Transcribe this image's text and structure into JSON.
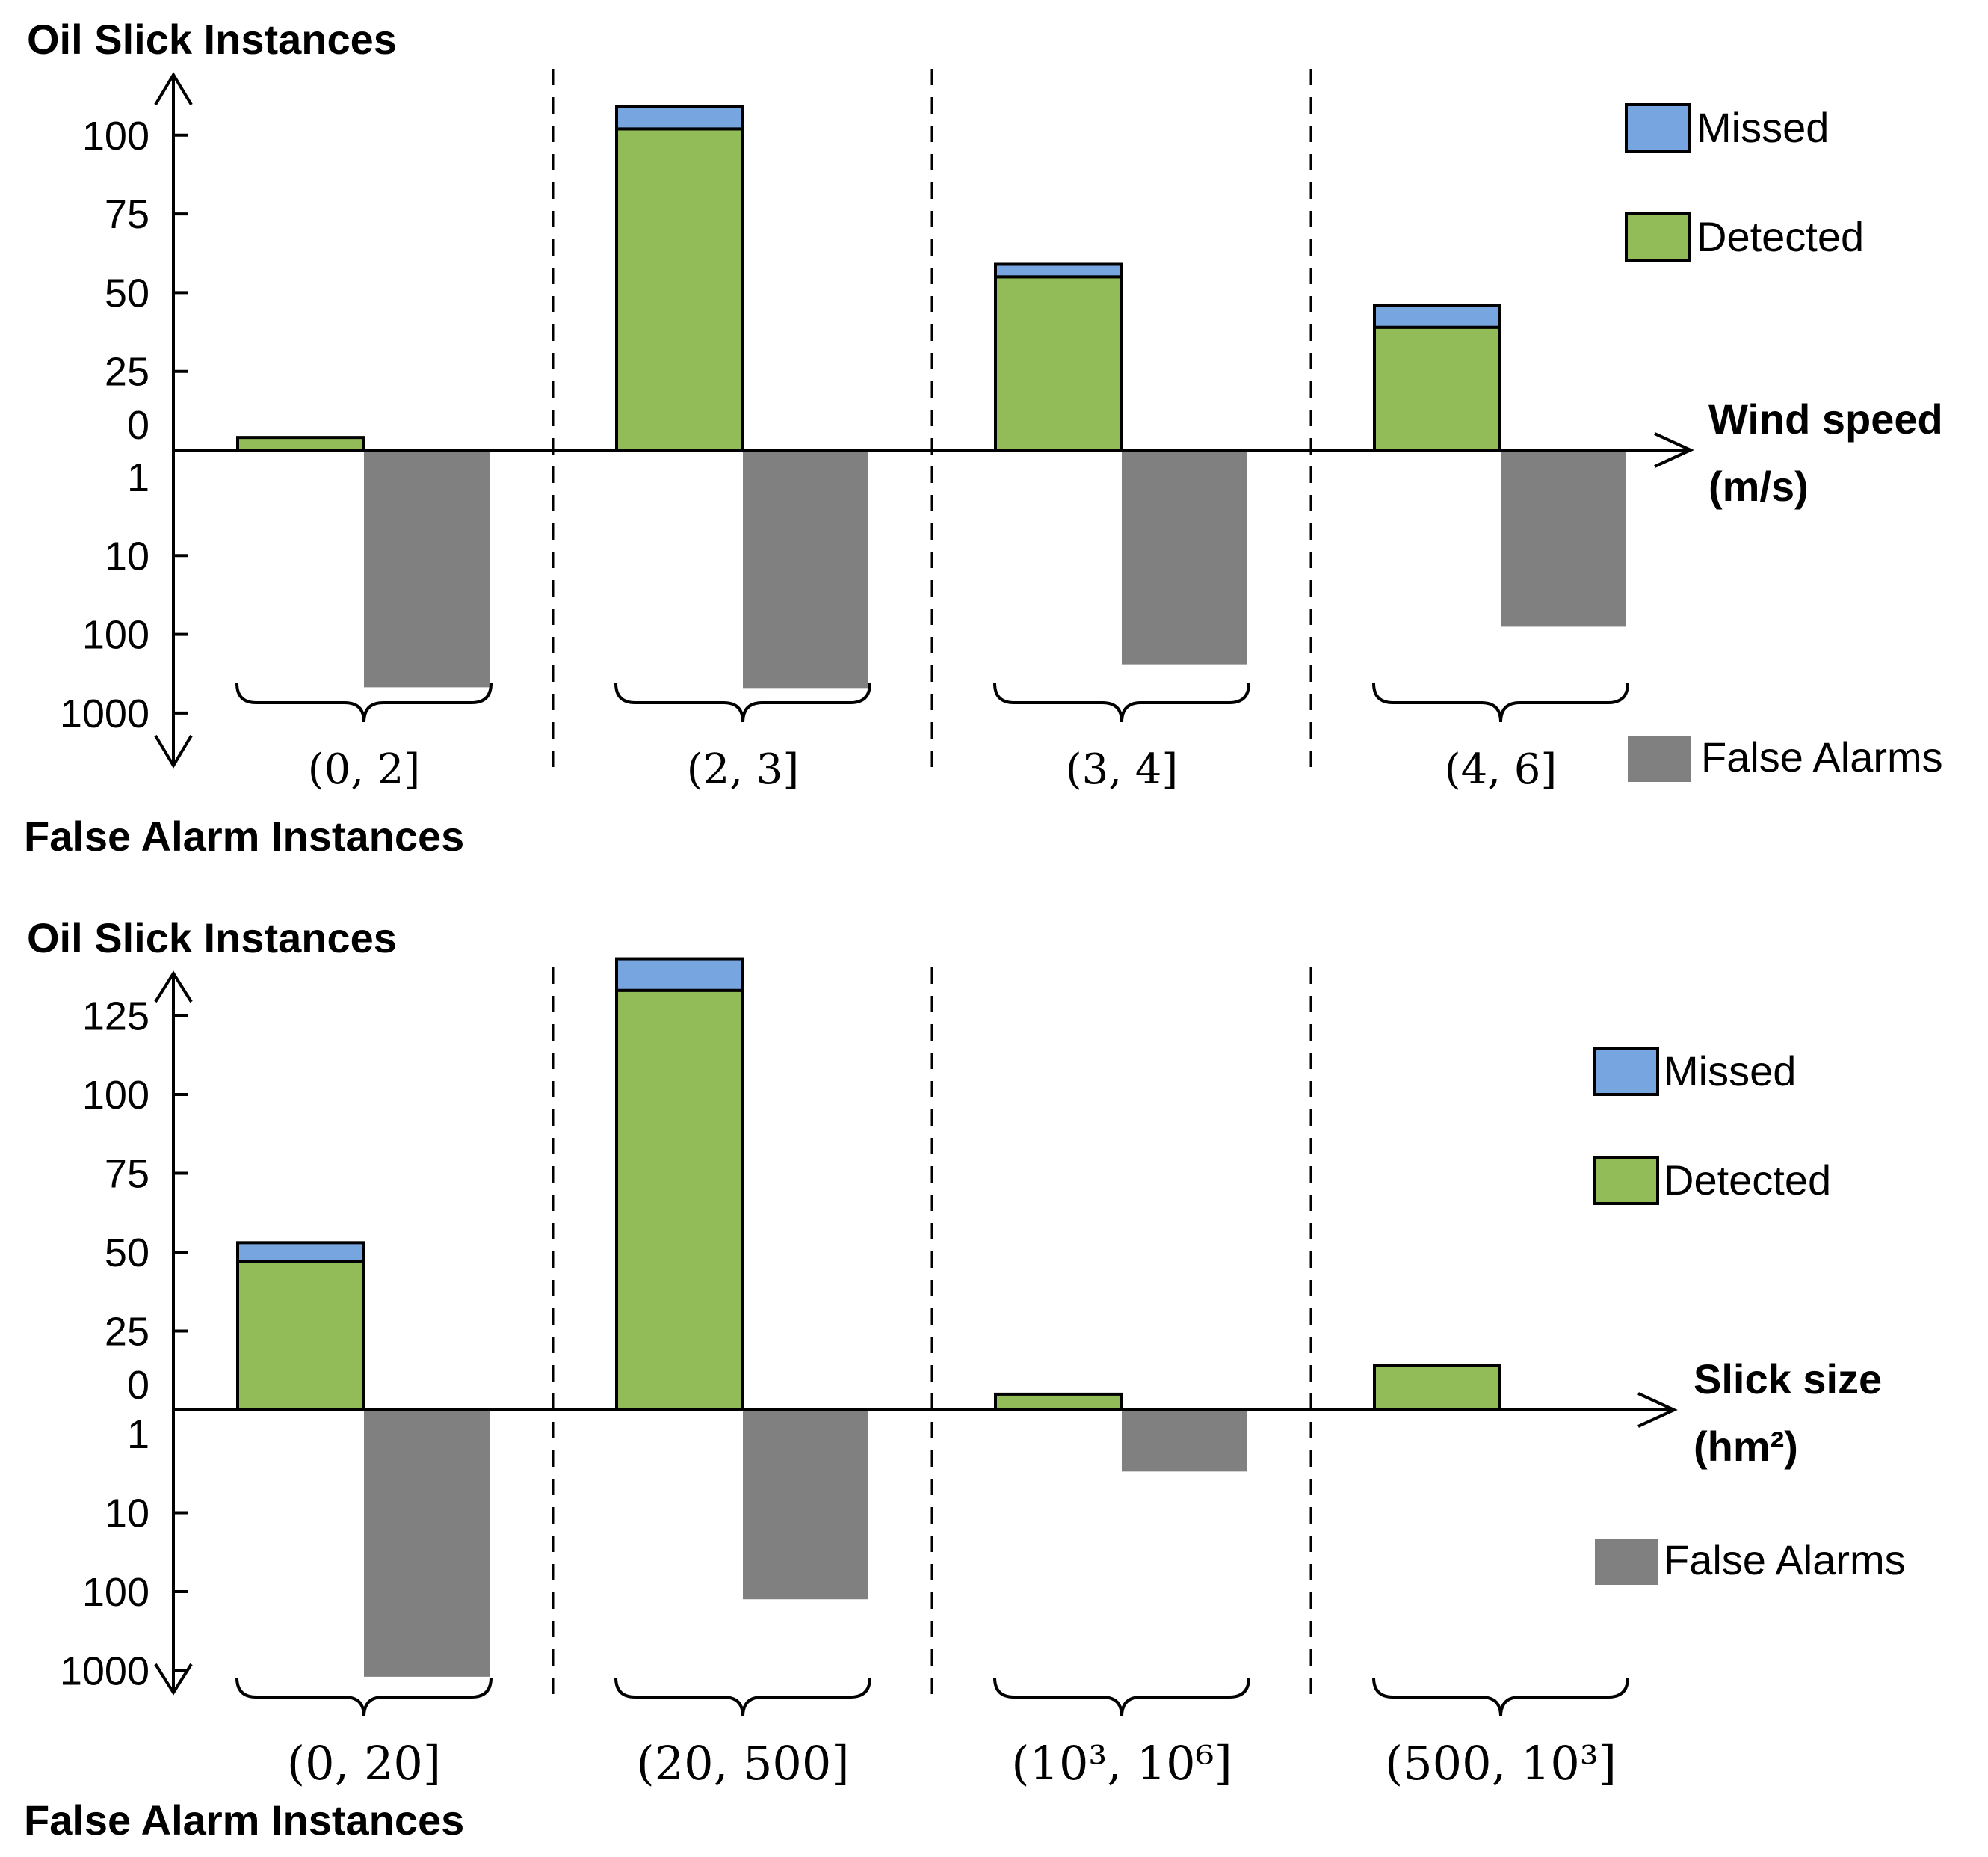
{
  "chart_data": [
    {
      "type": "bar",
      "title": "",
      "ylabel_top": "Oil Slick Instances",
      "ylabel_bottom": "False Alarm Instances",
      "xlabel_line1": "Wind speed",
      "xlabel_line2": "(m/s)",
      "categories": [
        "(0, 2]",
        "(2, 3]",
        "(3, 4]",
        "(4, 6]"
      ],
      "top_axis": {
        "scale": "linear",
        "ylim": [
          0,
          100
        ],
        "ticks": [
          "0",
          "25",
          "50",
          "75",
          "100"
        ]
      },
      "bottom_axis": {
        "scale": "log",
        "ticks": [
          "1",
          "10",
          "100",
          "1000"
        ]
      },
      "series": [
        {
          "name": "Detected",
          "color": "#92bc57",
          "values": [
            4,
            102,
            55,
            39
          ]
        },
        {
          "name": "Missed",
          "color": "#76a5df",
          "values": [
            0,
            7,
            4,
            7
          ]
        },
        {
          "name": "False Alarms",
          "color": "#808080",
          "values": [
            470,
            480,
            240,
            80
          ]
        }
      ],
      "legend_placement": "right",
      "grid": false
    },
    {
      "type": "bar",
      "title": "",
      "ylabel_top": "Oil Slick Instances",
      "ylabel_bottom": "False Alarm Instances",
      "xlabel_line1": "Slick size",
      "xlabel_line2": "(hm²)",
      "categories": [
        "(0, 20]",
        "(20, 500]",
        "(10³, 10⁶]",
        "(500, 10³]"
      ],
      "top_axis": {
        "scale": "linear",
        "ylim": [
          0,
          125
        ],
        "ticks": [
          "0",
          "25",
          "50",
          "75",
          "100",
          "125"
        ]
      },
      "bottom_axis": {
        "scale": "log",
        "ticks": [
          "1",
          "10",
          "100",
          "1000"
        ]
      },
      "series": [
        {
          "name": "Detected",
          "color": "#92bc57",
          "values": [
            47,
            133,
            5,
            14
          ]
        },
        {
          "name": "Missed",
          "color": "#76a5df",
          "values": [
            6,
            10,
            0,
            0
          ]
        },
        {
          "name": "False Alarms",
          "color": "#808080",
          "values": [
            1200,
            125,
            3,
            0
          ]
        }
      ],
      "legend_placement": "right",
      "grid": false
    }
  ]
}
